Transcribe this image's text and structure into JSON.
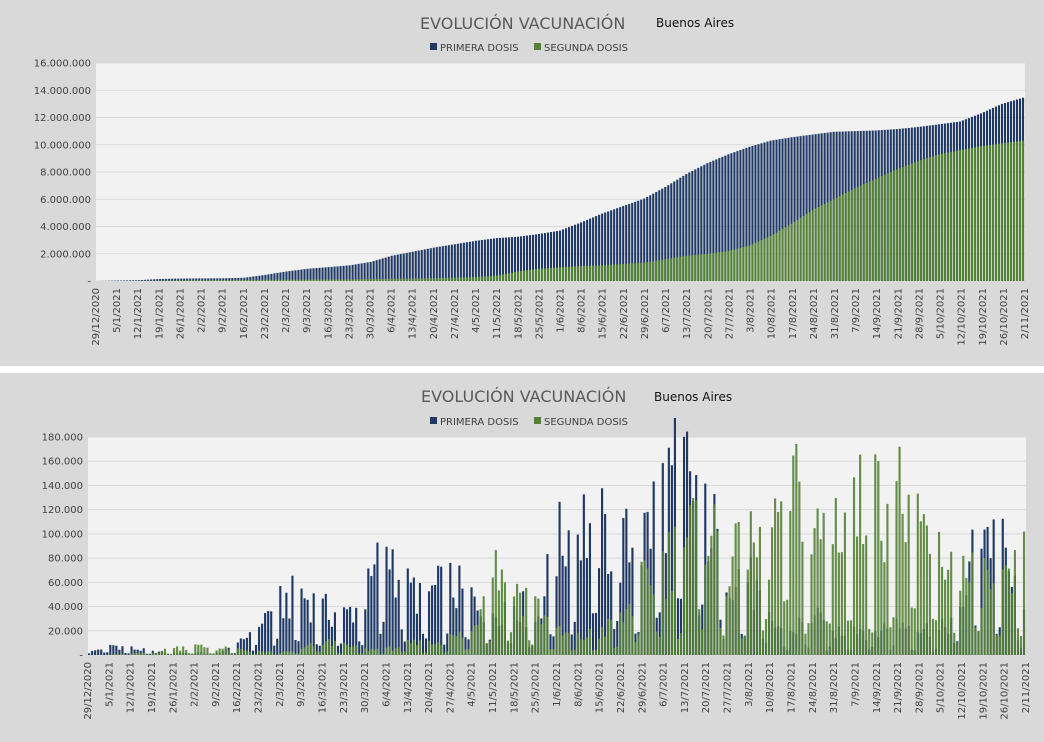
{
  "colors": {
    "primera": "#1f3864",
    "segunda": "#548235",
    "plot_bg": "#f2f2f2",
    "panel_bg": "#d9d9d9",
    "grid": "#d9d9d9"
  },
  "x_tick_labels": [
    "29/12/2020",
    "5/1/2021",
    "12/1/2021",
    "19/1/2021",
    "26/1/2021",
    "2/2/2021",
    "9/2/2021",
    "16/2/2021",
    "23/2/2021",
    "2/3/2021",
    "9/3/2021",
    "16/3/2021",
    "23/3/2021",
    "30/3/2021",
    "6/4/2021",
    "13/4/2021",
    "20/4/2021",
    "27/4/2021",
    "4/5/2021",
    "11/5/2021",
    "18/5/2021",
    "25/5/2021",
    "1/6/2021",
    "8/6/2021",
    "15/6/2021",
    "22/6/2021",
    "29/6/2021",
    "6/7/2021",
    "13/7/2021",
    "20/7/2021",
    "27/7/2021",
    "3/8/2021",
    "10/8/2021",
    "17/8/2021",
    "24/8/2021",
    "31/8/2021",
    "7/9/2021",
    "14/9/2021",
    "21/9/2021",
    "28/9/2021",
    "5/10/2021",
    "12/10/2021",
    "19/10/2021",
    "26/10/2021",
    "2/11/2021"
  ],
  "chart_data": [
    {
      "type": "bar",
      "title": "EVOLUCIÓN VACUNACIÓN",
      "subtitle": "Buenos Aires",
      "legend_position": "top",
      "grid": true,
      "ylim": [
        0,
        16000000
      ],
      "y_tick_labels": [
        "-",
        "2.000.000",
        "4.000.000",
        "6.000.000",
        "8.000.000",
        "10.000.000",
        "12.000.000",
        "14.000.000",
        "16.000.000"
      ],
      "x_tick_step_days": 7,
      "series": [
        {
          "name": "PRIMERA DOSIS",
          "values": [
            0,
            30000,
            60000,
            150000,
            180000,
            190000,
            200000,
            240000,
            450000,
            700000,
            900000,
            1020000,
            1150000,
            1400000,
            1850000,
            2150000,
            2450000,
            2700000,
            2950000,
            3150000,
            3250000,
            3450000,
            3700000,
            4300000,
            4950000,
            5500000,
            6050000,
            6900000,
            7850000,
            8650000,
            9300000,
            9850000,
            10300000,
            10550000,
            10750000,
            10950000,
            11000000,
            11050000,
            11150000,
            11300000,
            11500000,
            11700000,
            12300000,
            13000000,
            13450000
          ]
        },
        {
          "name": "SEGUNDA DOSIS",
          "values": [
            0,
            5000,
            15000,
            30000,
            50000,
            60000,
            70000,
            80000,
            90000,
            95000,
            100000,
            110000,
            120000,
            140000,
            160000,
            180000,
            210000,
            250000,
            300000,
            400000,
            700000,
            900000,
            1000000,
            1100000,
            1150000,
            1250000,
            1350000,
            1600000,
            1850000,
            2000000,
            2200000,
            2600000,
            3300000,
            4200000,
            5200000,
            6000000,
            6800000,
            7500000,
            8200000,
            8800000,
            9300000,
            9600000,
            9900000,
            10100000,
            10300000
          ]
        }
      ]
    },
    {
      "type": "bar",
      "title": "EVOLUCIÓN VACUNACIÓN",
      "subtitle": "Buenos Aires",
      "legend_position": "top",
      "grid": true,
      "ylim": [
        0,
        180000
      ],
      "y_tick_labels": [
        "-",
        "20.000",
        "40.000",
        "60.000",
        "80.000",
        "100.000",
        "120.000",
        "140.000",
        "160.000",
        "180.000"
      ],
      "x_tick_step_days": 7,
      "series": [
        {
          "name": "PRIMERA DOSIS",
          "values": [
            2000,
            9000,
            6000,
            3000,
            2000,
            2000,
            2000,
            8000,
            30000,
            45000,
            55000,
            40000,
            35000,
            50000,
            100000,
            58000,
            55000,
            62000,
            50000,
            40000,
            50000,
            30000,
            95000,
            120000,
            110000,
            95000,
            100000,
            145000,
            165000,
            130000,
            80000,
            70000,
            30000,
            20000,
            35000,
            20000,
            25000,
            20000,
            30000,
            25000,
            20000,
            40000,
            120000,
            90000,
            30000
          ]
        },
        {
          "name": "SEGUNDA DOSIS",
          "values": [
            0,
            500,
            1000,
            2000,
            6000,
            8000,
            6000,
            5000,
            3000,
            2000,
            5000,
            12000,
            8000,
            5000,
            5000,
            10000,
            10000,
            15000,
            20000,
            85000,
            63000,
            45000,
            20000,
            15000,
            20000,
            30000,
            60000,
            80000,
            100000,
            125000,
            80000,
            90000,
            100000,
            155000,
            100000,
            120000,
            130000,
            135000,
            145000,
            115000,
            95000,
            70000,
            70000,
            55000,
            80000
          ]
        }
      ]
    }
  ]
}
